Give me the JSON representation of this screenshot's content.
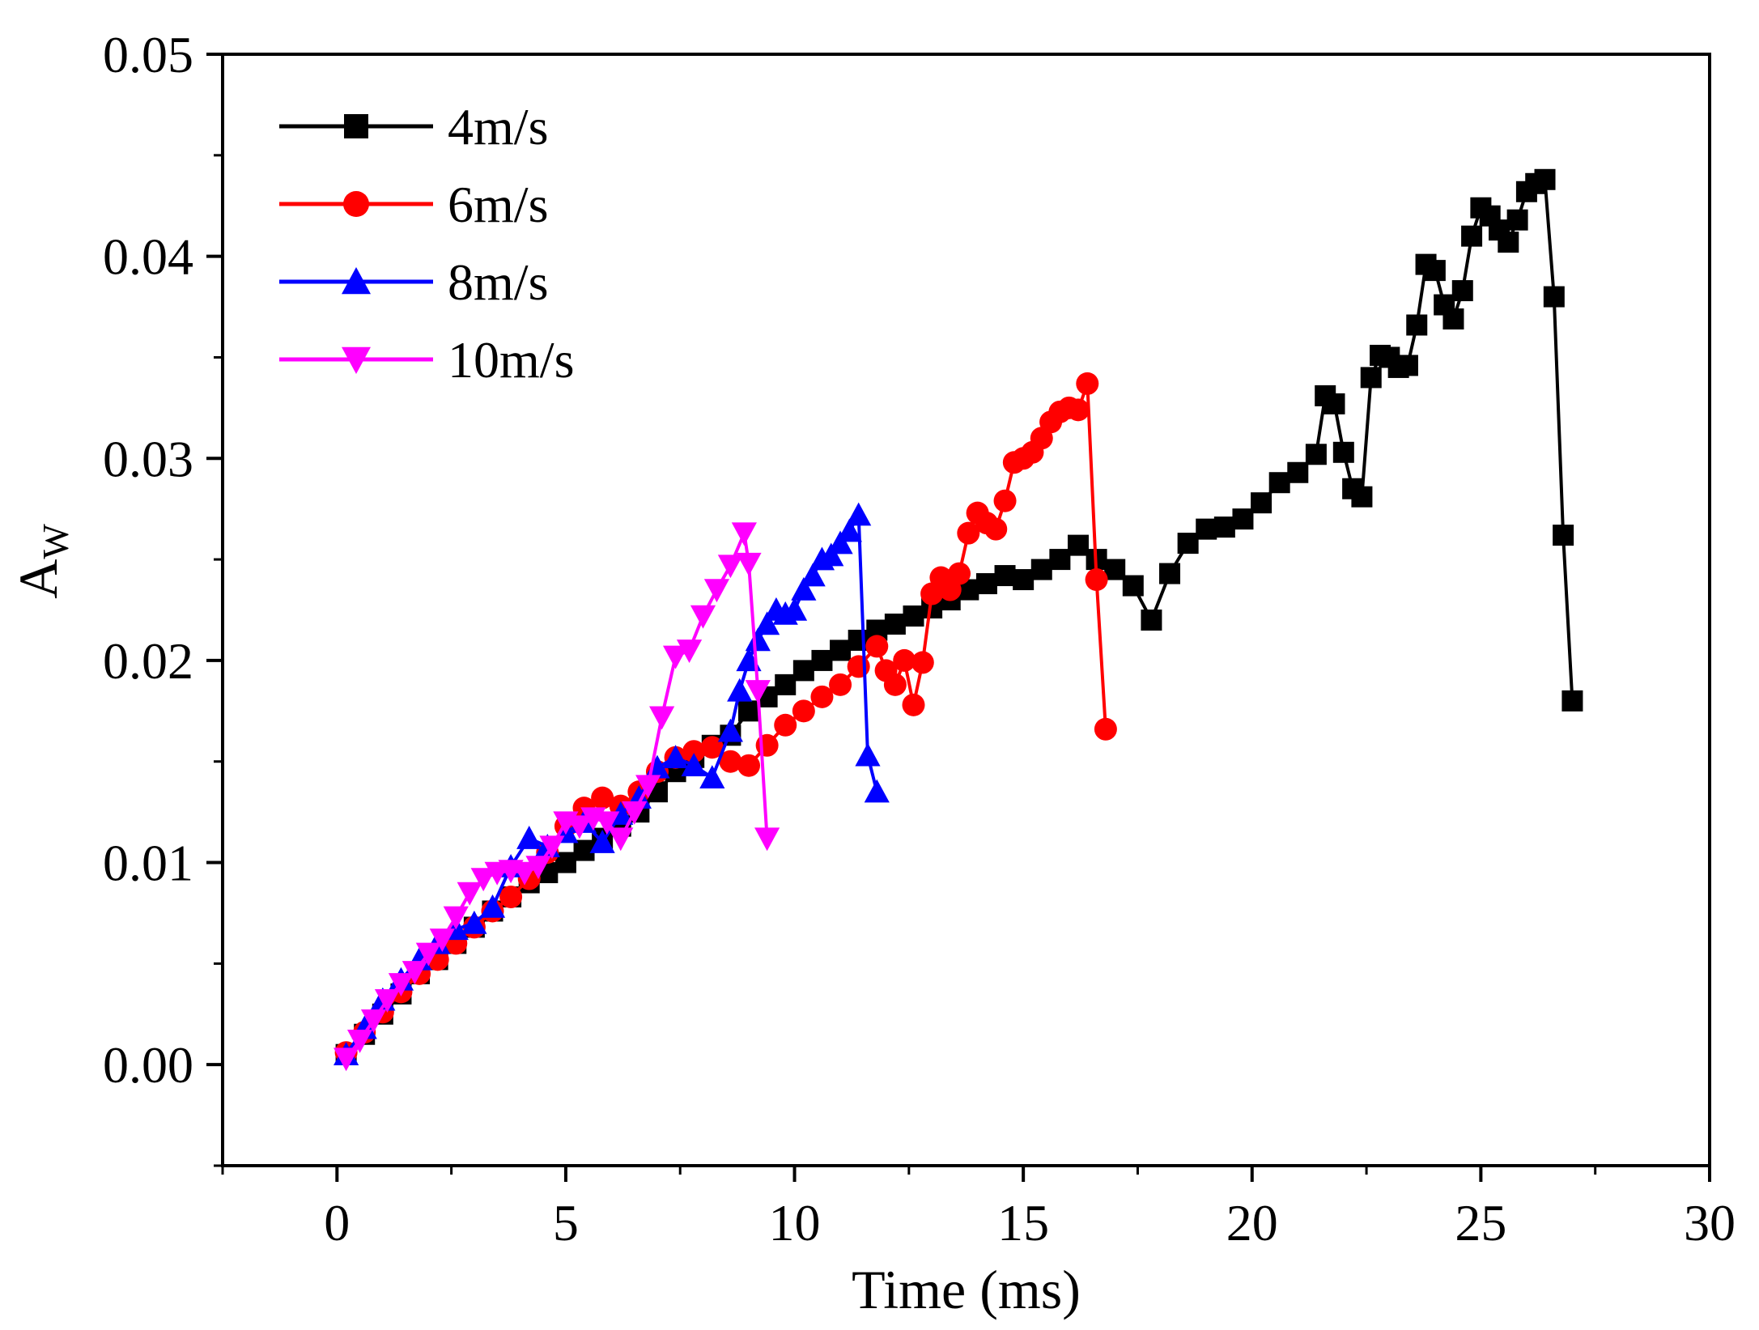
{
  "chart_data": {
    "type": "line",
    "title": "",
    "xlabel": "Time (ms)",
    "ylabel": "A",
    "ylabel_subscript": "W",
    "xlim": [
      -2.5,
      30
    ],
    "ylim": [
      -0.005,
      0.05
    ],
    "xticks": [
      0,
      5,
      10,
      15,
      20,
      25,
      30
    ],
    "xtick_labels": [
      "0",
      "5",
      "10",
      "15",
      "20",
      "25",
      "30"
    ],
    "yticks": [
      0,
      0.01,
      0.02,
      0.03,
      0.04,
      0.05
    ],
    "ytick_labels": [
      "0.00",
      "0.01",
      "0.02",
      "0.03",
      "0.04",
      "0.05"
    ],
    "grid": false,
    "legend_position": "top-left",
    "series": [
      {
        "name": "4m/s",
        "color": "#000000",
        "marker": "square",
        "x": [
          0.2,
          0.6,
          1.0,
          1.4,
          1.8,
          2.2,
          2.6,
          3.0,
          3.4,
          3.8,
          4.2,
          4.6,
          5.0,
          5.4,
          5.8,
          6.2,
          6.6,
          7.0,
          7.4,
          7.8,
          8.2,
          8.6,
          9.0,
          9.4,
          9.8,
          10.2,
          10.6,
          11.0,
          11.4,
          11.8,
          12.2,
          12.6,
          13.0,
          13.4,
          13.8,
          14.2,
          14.6,
          15.0,
          15.4,
          15.8,
          16.2,
          16.6,
          17.0,
          17.4,
          17.8,
          18.2,
          18.6,
          19.0,
          19.4,
          19.8,
          20.2,
          20.6,
          21.0,
          21.4,
          21.6,
          21.8,
          22.0,
          22.2,
          22.4,
          22.6,
          22.8,
          23.0,
          23.2,
          23.4,
          23.6,
          23.8,
          24.0,
          24.2,
          24.4,
          24.6,
          24.8,
          25.0,
          25.2,
          25.4,
          25.6,
          25.8,
          26.0,
          26.2,
          26.4,
          26.6,
          26.8,
          27.0
        ],
        "y": [
          0.0005,
          0.0015,
          0.0025,
          0.0035,
          0.0045,
          0.0052,
          0.006,
          0.0068,
          0.0076,
          0.0083,
          0.009,
          0.0095,
          0.01,
          0.0106,
          0.0112,
          0.0118,
          0.0125,
          0.0135,
          0.0145,
          0.0152,
          0.0158,
          0.0163,
          0.0175,
          0.0182,
          0.0188,
          0.0195,
          0.02,
          0.0205,
          0.021,
          0.0215,
          0.0218,
          0.0222,
          0.0226,
          0.023,
          0.0235,
          0.0238,
          0.0242,
          0.024,
          0.0245,
          0.025,
          0.0257,
          0.025,
          0.0245,
          0.0237,
          0.022,
          0.0243,
          0.0258,
          0.0265,
          0.0266,
          0.027,
          0.0278,
          0.0288,
          0.0293,
          0.0302,
          0.0331,
          0.0327,
          0.0303,
          0.0285,
          0.0281,
          0.034,
          0.0351,
          0.035,
          0.0345,
          0.0346,
          0.0366,
          0.0396,
          0.0393,
          0.0376,
          0.0369,
          0.0383,
          0.041,
          0.0424,
          0.042,
          0.0413,
          0.0407,
          0.0418,
          0.0432,
          0.0436,
          0.0438,
          0.038,
          0.0262,
          0.018
        ]
      },
      {
        "name": "6m/s",
        "color": "#ff0000",
        "marker": "circle",
        "x": [
          0.2,
          0.6,
          1.0,
          1.4,
          1.8,
          2.2,
          2.6,
          3.0,
          3.4,
          3.8,
          4.2,
          4.6,
          5.0,
          5.4,
          5.8,
          6.2,
          6.6,
          7.0,
          7.4,
          7.8,
          8.2,
          8.6,
          9.0,
          9.4,
          9.8,
          10.2,
          10.6,
          11.0,
          11.4,
          11.8,
          12.0,
          12.2,
          12.4,
          12.6,
          12.8,
          13.0,
          13.2,
          13.4,
          13.6,
          13.8,
          14.0,
          14.2,
          14.4,
          14.6,
          14.8,
          15.0,
          15.2,
          15.4,
          15.6,
          15.8,
          16.0,
          16.2,
          16.4,
          16.6,
          16.8
        ],
        "y": [
          0.0006,
          0.0016,
          0.0026,
          0.0036,
          0.0045,
          0.0052,
          0.006,
          0.0068,
          0.0076,
          0.0083,
          0.0092,
          0.0105,
          0.0118,
          0.0127,
          0.0132,
          0.0128,
          0.0135,
          0.0145,
          0.0152,
          0.0155,
          0.0157,
          0.015,
          0.0148,
          0.0158,
          0.0168,
          0.0175,
          0.0182,
          0.0188,
          0.0197,
          0.0207,
          0.0195,
          0.0188,
          0.02,
          0.0178,
          0.0199,
          0.0233,
          0.0241,
          0.0235,
          0.0243,
          0.0263,
          0.0273,
          0.0268,
          0.0265,
          0.0279,
          0.0298,
          0.03,
          0.0303,
          0.031,
          0.0318,
          0.0323,
          0.0325,
          0.0324,
          0.0337,
          0.024,
          0.0166
        ]
      },
      {
        "name": "8m/s",
        "color": "#0000ff",
        "marker": "triangle-up",
        "x": [
          0.2,
          0.6,
          1.0,
          1.4,
          1.8,
          2.2,
          2.6,
          3.0,
          3.4,
          3.8,
          4.2,
          4.6,
          5.0,
          5.4,
          5.8,
          6.2,
          6.6,
          7.0,
          7.4,
          7.8,
          8.2,
          8.6,
          8.8,
          9.0,
          9.2,
          9.4,
          9.6,
          9.8,
          10.0,
          10.2,
          10.4,
          10.6,
          10.8,
          11.0,
          11.2,
          11.4,
          11.6,
          11.8
        ],
        "y": [
          0.0005,
          0.0018,
          0.0032,
          0.0042,
          0.0052,
          0.006,
          0.0067,
          0.007,
          0.0078,
          0.0098,
          0.0112,
          0.0108,
          0.0115,
          0.012,
          0.011,
          0.0124,
          0.0132,
          0.0147,
          0.0152,
          0.0148,
          0.0142,
          0.0165,
          0.0185,
          0.02,
          0.021,
          0.0218,
          0.0225,
          0.0223,
          0.0225,
          0.0235,
          0.0242,
          0.025,
          0.0252,
          0.0258,
          0.0264,
          0.0272,
          0.0153,
          0.0135
        ]
      },
      {
        "name": "10m/s",
        "color": "#ff00ff",
        "marker": "triangle-down",
        "x": [
          0.2,
          0.5,
          0.8,
          1.1,
          1.4,
          1.7,
          2.0,
          2.3,
          2.6,
          2.9,
          3.2,
          3.5,
          3.8,
          4.1,
          4.4,
          4.7,
          5.0,
          5.3,
          5.6,
          5.9,
          6.2,
          6.5,
          6.8,
          7.1,
          7.4,
          7.7,
          8.0,
          8.3,
          8.6,
          8.9,
          9.0,
          9.2,
          9.4
        ],
        "y": [
          0.0003,
          0.0012,
          0.0022,
          0.0032,
          0.004,
          0.0046,
          0.0055,
          0.0062,
          0.0073,
          0.0085,
          0.0092,
          0.0095,
          0.0096,
          0.0095,
          0.0098,
          0.0108,
          0.012,
          0.0118,
          0.0122,
          0.012,
          0.0112,
          0.0125,
          0.0138,
          0.0172,
          0.0202,
          0.0205,
          0.0222,
          0.0235,
          0.0247,
          0.0263,
          0.0248,
          0.0185,
          0.0112
        ]
      }
    ]
  }
}
